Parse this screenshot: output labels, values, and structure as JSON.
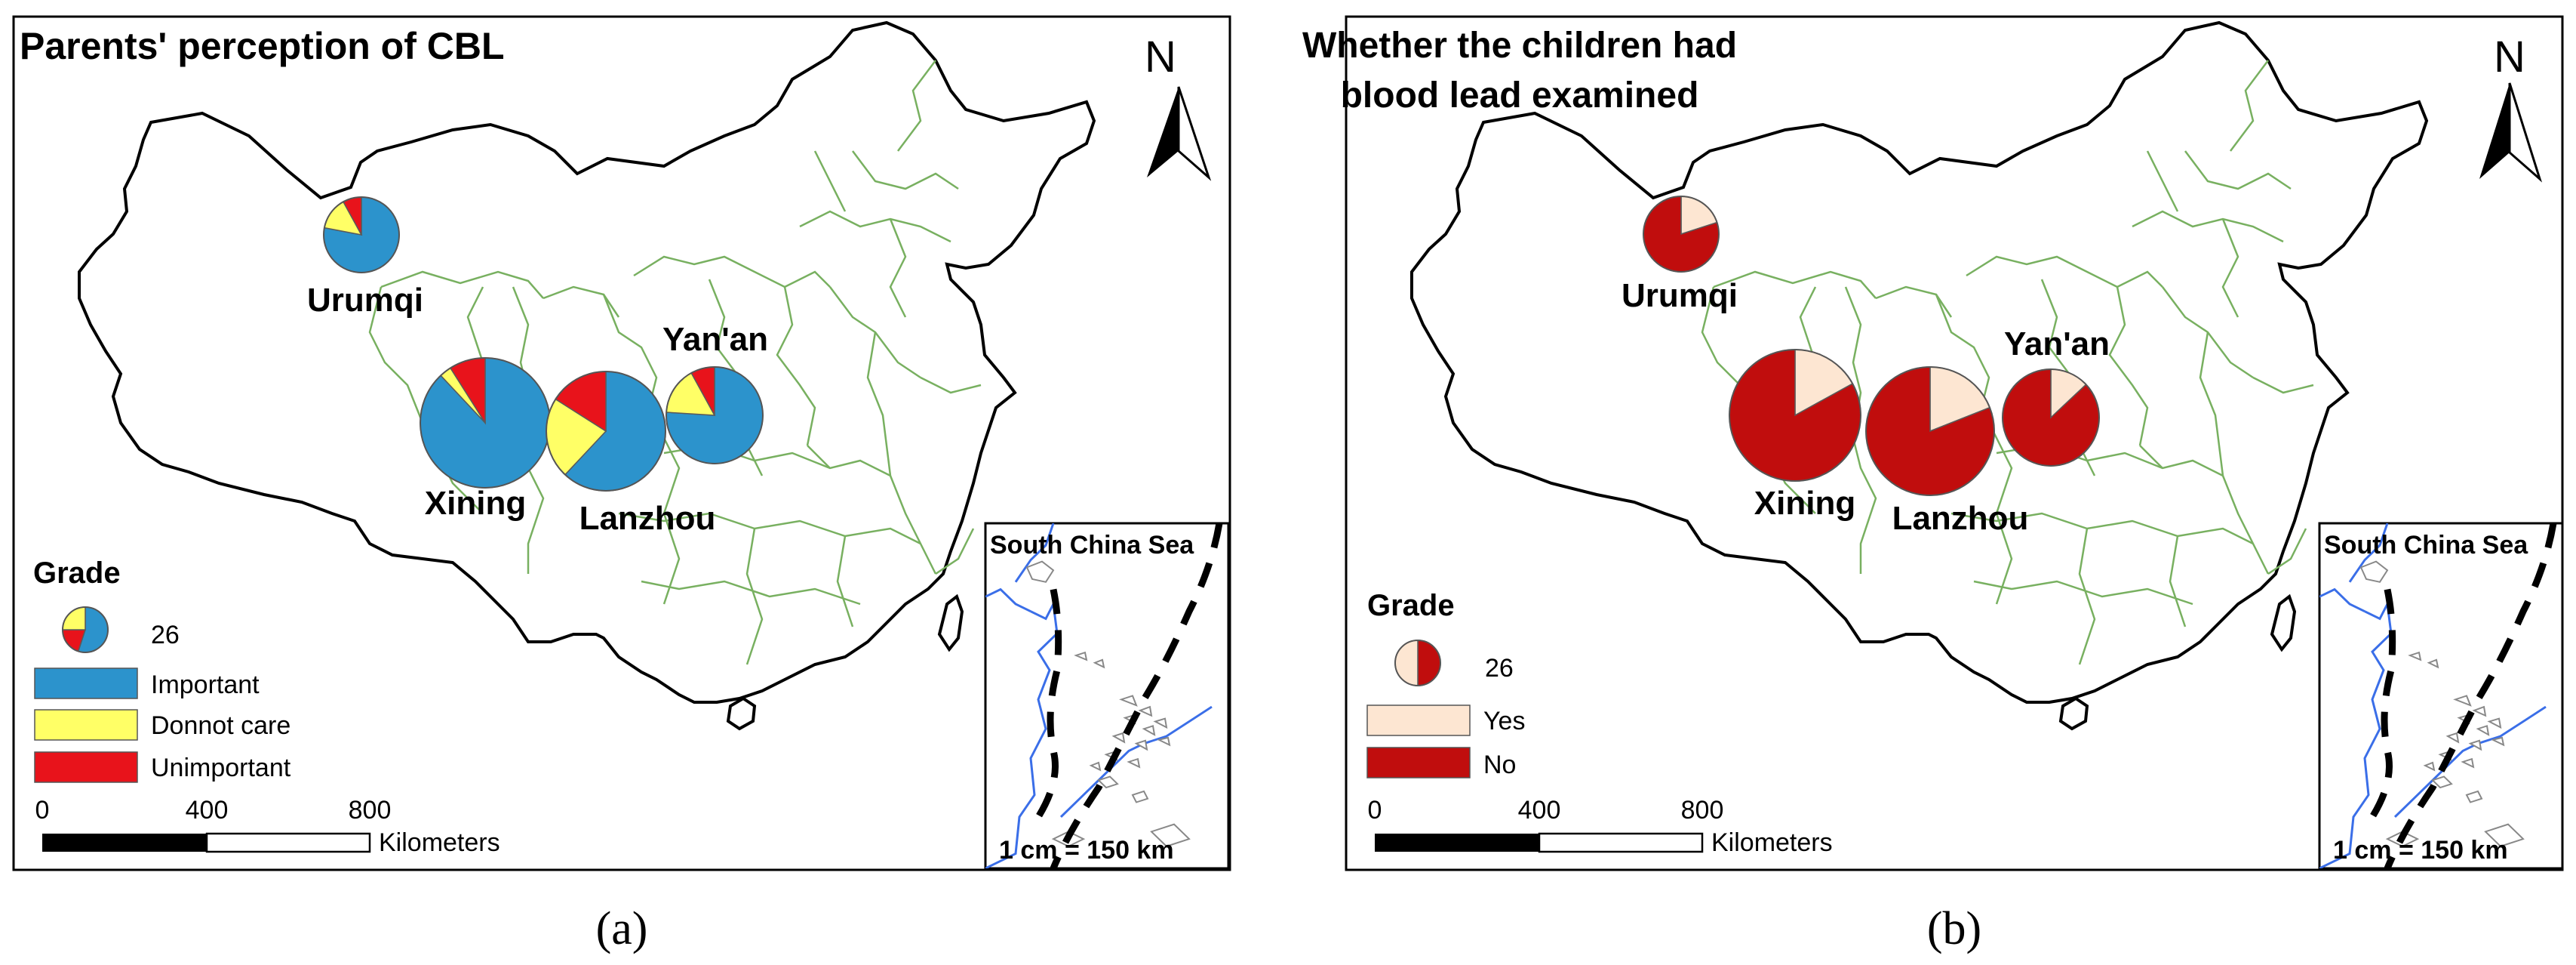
{
  "colors": {
    "important": "#2c93cc",
    "donnot_care": "#ffff66",
    "unimportant": "#e8131b",
    "yes": "#fde6d2",
    "no": "#c00d0d",
    "province_border": "#78b060",
    "coastline": "#3a6ee8"
  },
  "panels": [
    {
      "title_lines": [
        "Parents' perception of CBL"
      ],
      "caption": "(a)",
      "north": "N",
      "legend": {
        "title": "Grade",
        "grade_value": "26",
        "items": [
          {
            "label": "Important",
            "color_key": "important"
          },
          {
            "label": "Donnot care",
            "color_key": "donnot_care"
          },
          {
            "label": "Unimportant",
            "color_key": "unimportant"
          }
        ]
      },
      "scale": {
        "ticks": [
          "0",
          "400",
          "800"
        ],
        "unit": "Kilometers"
      },
      "inset": {
        "title": "South China Sea",
        "scale_text": "1 cm = 150 km"
      }
    },
    {
      "title_lines": [
        "Whether the children had",
        "blood lead examined"
      ],
      "caption": "(b)",
      "north": "N",
      "legend": {
        "title": "Grade",
        "grade_value": "26",
        "items": [
          {
            "label": "Yes",
            "color_key": "yes"
          },
          {
            "label": "No",
            "color_key": "no"
          }
        ]
      },
      "scale": {
        "ticks": [
          "0",
          "400",
          "800"
        ],
        "unit": "Kilometers"
      },
      "inset": {
        "title": "South China Sea",
        "scale_text": "1 cm = 150 km"
      }
    }
  ],
  "chart_data": [
    {
      "type": "pie",
      "title": "Parents' perception of CBL",
      "categories": [
        "Important",
        "Donnot care",
        "Unimportant"
      ],
      "cities": [
        {
          "name": "Urumqi",
          "values": [
            0.78,
            0.14,
            0.08
          ]
        },
        {
          "name": "Xining",
          "values": [
            0.88,
            0.03,
            0.09
          ]
        },
        {
          "name": "Lanzhou",
          "values": [
            0.62,
            0.22,
            0.16
          ]
        },
        {
          "name": "Yan'an",
          "values": [
            0.76,
            0.16,
            0.08
          ]
        }
      ]
    },
    {
      "type": "pie",
      "title": "Whether the children had blood lead examined",
      "categories": [
        "Yes",
        "No"
      ],
      "cities": [
        {
          "name": "Urumqi",
          "values": [
            0.2,
            0.8
          ]
        },
        {
          "name": "Xining",
          "values": [
            0.17,
            0.83
          ]
        },
        {
          "name": "Lanzhou",
          "values": [
            0.19,
            0.81
          ]
        },
        {
          "name": "Yan'an",
          "values": [
            0.13,
            0.87
          ]
        }
      ]
    }
  ]
}
